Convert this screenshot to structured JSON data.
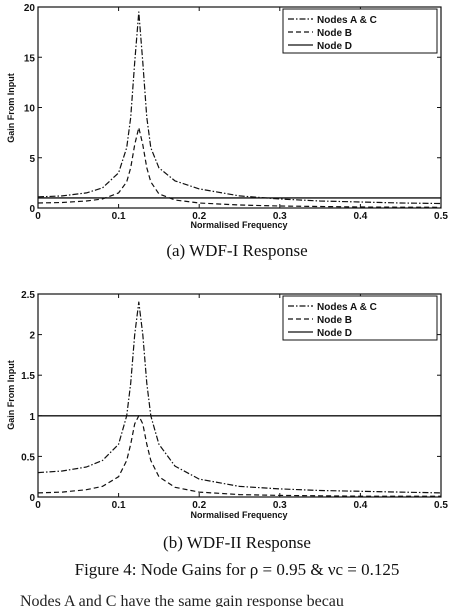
{
  "chart_data": [
    {
      "type": "line",
      "caption": "(a)  WDF-I Response",
      "xlabel": "Normalised Frequency",
      "ylabel": "Gain From Input",
      "xlim": [
        0,
        0.5
      ],
      "ylim": [
        0,
        20
      ],
      "xticks": [
        "0",
        "0.1",
        "0.2",
        "0.3",
        "0.4",
        "0.5"
      ],
      "yticks": [
        "0",
        "5",
        "10",
        "15",
        "20"
      ],
      "legend_position": "top-right",
      "series": [
        {
          "name": "Nodes A & C",
          "style": "dashdot",
          "x": [
            0,
            0.03,
            0.06,
            0.08,
            0.1,
            0.11,
            0.115,
            0.12,
            0.125,
            0.13,
            0.135,
            0.14,
            0.15,
            0.17,
            0.2,
            0.25,
            0.3,
            0.35,
            0.4,
            0.45,
            0.5
          ],
          "y": [
            1.1,
            1.2,
            1.5,
            2.0,
            3.5,
            6.0,
            9.0,
            14.5,
            19.5,
            14.5,
            9.0,
            6.0,
            4.0,
            2.7,
            1.9,
            1.2,
            0.9,
            0.7,
            0.6,
            0.5,
            0.45
          ]
        },
        {
          "name": "Node B",
          "style": "dashed",
          "x": [
            0,
            0.03,
            0.06,
            0.08,
            0.1,
            0.11,
            0.115,
            0.12,
            0.125,
            0.13,
            0.135,
            0.14,
            0.15,
            0.17,
            0.2,
            0.25,
            0.3,
            0.35,
            0.4,
            0.45,
            0.5
          ],
          "y": [
            0.5,
            0.55,
            0.7,
            0.9,
            1.5,
            2.6,
            4.0,
            6.3,
            8.0,
            6.3,
            4.0,
            2.6,
            1.4,
            0.8,
            0.5,
            0.3,
            0.2,
            0.15,
            0.1,
            0.08,
            0.07
          ]
        },
        {
          "name": "Node D",
          "style": "solid",
          "x": [
            0,
            0.5
          ],
          "y": [
            1.0,
            1.0
          ]
        }
      ]
    },
    {
      "type": "line",
      "caption": "(b)  WDF-II Response",
      "xlabel": "Normalised Frequency",
      "ylabel": "Gain From Input",
      "xlim": [
        0,
        0.5
      ],
      "ylim": [
        0,
        2.5
      ],
      "xticks": [
        "0",
        "0.1",
        "0.2",
        "0.3",
        "0.4",
        "0.5"
      ],
      "yticks": [
        "0",
        "0.5",
        "1",
        "1.5",
        "2",
        "2.5"
      ],
      "legend_position": "top-right",
      "series": [
        {
          "name": "Nodes A & C",
          "style": "dashdot",
          "x": [
            0,
            0.03,
            0.06,
            0.08,
            0.1,
            0.11,
            0.115,
            0.12,
            0.125,
            0.13,
            0.135,
            0.14,
            0.15,
            0.17,
            0.2,
            0.25,
            0.3,
            0.35,
            0.4,
            0.45,
            0.5
          ],
          "y": [
            0.3,
            0.32,
            0.37,
            0.45,
            0.65,
            1.0,
            1.4,
            2.0,
            2.4,
            2.0,
            1.4,
            1.0,
            0.65,
            0.38,
            0.22,
            0.13,
            0.1,
            0.08,
            0.07,
            0.06,
            0.05
          ]
        },
        {
          "name": "Node B",
          "style": "dashed",
          "x": [
            0,
            0.03,
            0.06,
            0.08,
            0.1,
            0.11,
            0.115,
            0.12,
            0.125,
            0.13,
            0.135,
            0.14,
            0.15,
            0.17,
            0.2,
            0.25,
            0.3,
            0.35,
            0.4,
            0.45,
            0.5
          ],
          "y": [
            0.05,
            0.06,
            0.09,
            0.13,
            0.25,
            0.45,
            0.65,
            0.9,
            1.0,
            0.9,
            0.65,
            0.45,
            0.25,
            0.12,
            0.06,
            0.03,
            0.02,
            0.015,
            0.01,
            0.01,
            0.01
          ]
        },
        {
          "name": "Node D",
          "style": "solid",
          "x": [
            0,
            0.5
          ],
          "y": [
            1.0,
            1.0
          ]
        }
      ]
    }
  ],
  "figure_caption": "Figure 4:  Node Gains for ρ = 0.95 & νc = 0.125",
  "text_fragment": "Nodes A and C have the same gain response becau"
}
